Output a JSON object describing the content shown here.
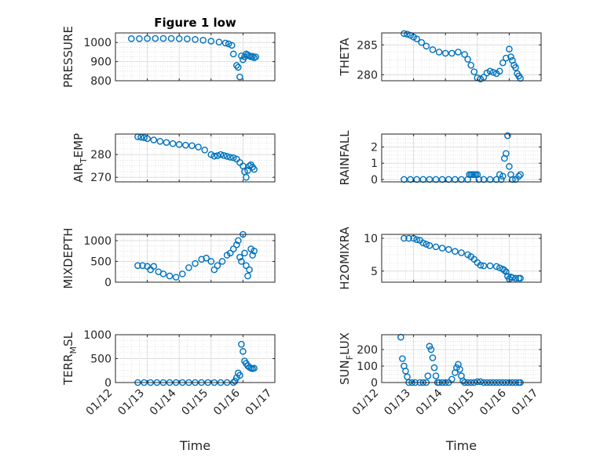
{
  "chart_data": [
    {
      "type": "scatter",
      "title": "Figure 1 low",
      "ylabel": "PRESSURE",
      "ylabel_parts": [
        {
          "t": "PRESSURE",
          "sub": false
        }
      ],
      "ylim": [
        800,
        1050
      ],
      "yticks": [
        800,
        900,
        1000
      ],
      "ytick_labels": [
        "800",
        "900",
        "1000"
      ],
      "xlim": [
        0,
        5
      ],
      "xticks": [
        0,
        1,
        2,
        3,
        4,
        5
      ],
      "xtick_labels": [],
      "grid": true,
      "marker": "circle",
      "color": "#0072bd",
      "series": [
        {
          "x": [
            0.5,
            0.75,
            1.0,
            1.25,
            1.5,
            1.75,
            2.0,
            2.25,
            2.5,
            2.75,
            3.0,
            3.25,
            3.45,
            3.55,
            3.65,
            3.7,
            3.8,
            3.85,
            3.9,
            3.95,
            4.0,
            4.05,
            4.1,
            4.15,
            4.2,
            4.25,
            4.3,
            4.35,
            4.4
          ],
          "y": [
            1020,
            1020,
            1021,
            1021,
            1021,
            1021,
            1020,
            1019,
            1016,
            1012,
            1007,
            1002,
            997,
            993,
            985,
            940,
            880,
            870,
            820,
            930,
            910,
            925,
            940,
            935,
            930,
            925,
            928,
            920,
            925
          ]
        }
      ]
    },
    {
      "type": "scatter",
      "title": "",
      "ylabel": "THETA",
      "ylabel_parts": [
        {
          "t": "THETA",
          "sub": false
        }
      ],
      "ylim": [
        279,
        287
      ],
      "yticks": [
        280,
        285
      ],
      "ytick_labels": [
        "280",
        "285"
      ],
      "xlim": [
        0,
        5
      ],
      "xticks": [
        0,
        1,
        2,
        3,
        4,
        5
      ],
      "xtick_labels": [],
      "grid": true,
      "marker": "circle",
      "color": "#0072bd",
      "series": [
        {
          "x": [
            0.7,
            0.8,
            0.9,
            1.0,
            1.1,
            1.25,
            1.4,
            1.6,
            1.8,
            2.0,
            2.2,
            2.4,
            2.6,
            2.7,
            2.8,
            2.9,
            3.0,
            3.1,
            3.2,
            3.3,
            3.4,
            3.5,
            3.6,
            3.7,
            3.8,
            3.9,
            4.0,
            4.05,
            4.1,
            4.15,
            4.2,
            4.25,
            4.3,
            4.35
          ],
          "y": [
            286.9,
            286.8,
            286.6,
            286.3,
            286.0,
            285.4,
            284.8,
            284.2,
            283.8,
            283.6,
            283.6,
            283.8,
            283.4,
            282.6,
            281.6,
            280.5,
            279.5,
            279.3,
            279.6,
            280.3,
            280.6,
            280.4,
            280.2,
            280.6,
            282.0,
            282.8,
            284.3,
            283.0,
            282.4,
            281.6,
            281.2,
            280.2,
            279.8,
            279.4
          ]
        }
      ]
    },
    {
      "type": "scatter",
      "title": "",
      "ylabel": "AIR_TEMP",
      "ylabel_parts": [
        {
          "t": "AIR",
          "sub": false
        },
        {
          "t": "T",
          "sub": true
        },
        {
          "t": "EMP",
          "sub": false
        }
      ],
      "ylim": [
        268,
        289
      ],
      "yticks": [
        270,
        280
      ],
      "ytick_labels": [
        "270",
        "280"
      ],
      "xlim": [
        0,
        5
      ],
      "xticks": [
        0,
        1,
        2,
        3,
        4,
        5
      ],
      "xtick_labels": [],
      "grid": true,
      "marker": "circle",
      "color": "#0072bd",
      "series": [
        {
          "x": [
            0.7,
            0.8,
            0.9,
            1.0,
            1.2,
            1.4,
            1.6,
            1.8,
            2.0,
            2.2,
            2.4,
            2.6,
            2.8,
            3.0,
            3.1,
            3.2,
            3.3,
            3.4,
            3.5,
            3.6,
            3.7,
            3.8,
            3.9,
            4.0,
            4.05,
            4.1,
            4.15,
            4.2,
            4.25,
            4.3,
            4.35
          ],
          "y": [
            287.8,
            287.6,
            287.4,
            287.0,
            286.4,
            285.8,
            285.3,
            284.8,
            284.4,
            284.1,
            283.9,
            283.3,
            282.0,
            280.0,
            279.3,
            279.5,
            280.0,
            279.6,
            279.2,
            278.8,
            278.6,
            278.0,
            276.5,
            275.0,
            272.5,
            270.0,
            273.0,
            275.0,
            275.5,
            274.5,
            273.5
          ]
        }
      ]
    },
    {
      "type": "scatter",
      "title": "",
      "ylabel": "RAINFALL",
      "ylabel_parts": [
        {
          "t": "RAINFALL",
          "sub": false
        }
      ],
      "ylim": [
        -0.15,
        2.8
      ],
      "yticks": [
        0,
        1,
        2
      ],
      "ytick_labels": [
        "0",
        "1",
        "2"
      ],
      "xlim": [
        0,
        5
      ],
      "xticks": [
        0,
        1,
        2,
        3,
        4,
        5
      ],
      "xtick_labels": [],
      "grid": true,
      "marker": "circle",
      "color": "#0072bd",
      "series": [
        {
          "x": [
            0.7,
            0.9,
            1.1,
            1.3,
            1.5,
            1.7,
            1.9,
            2.1,
            2.3,
            2.5,
            2.7,
            2.75,
            2.8,
            2.85,
            2.9,
            2.95,
            3.0,
            3.05,
            3.2,
            3.4,
            3.6,
            3.7,
            3.75,
            3.8,
            3.85,
            3.9,
            3.95,
            4.0,
            4.05,
            4.1,
            4.2,
            4.3,
            4.35
          ],
          "y": [
            0,
            0,
            0,
            0,
            0,
            0,
            0,
            0,
            0,
            0,
            0,
            0.3,
            0.3,
            0.3,
            0.3,
            0.3,
            0.3,
            0,
            0,
            0,
            0,
            0.3,
            0,
            0.2,
            1.3,
            1.6,
            2.7,
            0.8,
            0.3,
            0,
            0,
            0.2,
            0.3
          ]
        }
      ]
    },
    {
      "type": "scatter",
      "title": "",
      "ylabel": "MIXDEPTH",
      "ylabel_parts": [
        {
          "t": "MIXDEPTH",
          "sub": false
        }
      ],
      "ylim": [
        0,
        1150
      ],
      "yticks": [
        0,
        500,
        1000
      ],
      "ytick_labels": [
        "0",
        "500",
        "1000"
      ],
      "xlim": [
        0,
        5
      ],
      "xticks": [
        0,
        1,
        2,
        3,
        4,
        5
      ],
      "xtick_labels": [],
      "grid": true,
      "marker": "circle",
      "color": "#0072bd",
      "series": [
        {
          "x": [
            0.7,
            0.85,
            1.0,
            1.1,
            1.2,
            1.35,
            1.5,
            1.7,
            1.9,
            2.1,
            2.3,
            2.5,
            2.7,
            2.85,
            3.0,
            3.1,
            3.2,
            3.35,
            3.5,
            3.6,
            3.7,
            3.8,
            3.85,
            3.9,
            3.95,
            4.0,
            4.05,
            4.1,
            4.15,
            4.2,
            4.25,
            4.3,
            4.35
          ],
          "y": [
            400,
            400,
            380,
            300,
            380,
            250,
            200,
            150,
            120,
            200,
            350,
            450,
            550,
            580,
            500,
            300,
            400,
            500,
            650,
            700,
            800,
            900,
            1000,
            600,
            500,
            1150,
            700,
            400,
            150,
            300,
            800,
            650,
            750
          ]
        }
      ]
    },
    {
      "type": "scatter",
      "title": "",
      "ylabel": "H2OMIXRA",
      "ylabel_parts": [
        {
          "t": "H2OMIXRA",
          "sub": false
        }
      ],
      "ylim": [
        3.3,
        10.6
      ],
      "yticks": [
        5,
        10
      ],
      "ytick_labels": [
        "5",
        "10"
      ],
      "xlim": [
        0,
        5
      ],
      "xticks": [
        0,
        1,
        2,
        3,
        4,
        5
      ],
      "xtick_labels": [],
      "grid": true,
      "marker": "circle",
      "color": "#0072bd",
      "series": [
        {
          "x": [
            0.7,
            0.85,
            1.0,
            1.1,
            1.2,
            1.3,
            1.4,
            1.5,
            1.7,
            1.9,
            2.1,
            2.3,
            2.5,
            2.7,
            2.8,
            2.9,
            3.0,
            3.1,
            3.2,
            3.4,
            3.6,
            3.7,
            3.8,
            3.85,
            3.9,
            3.95,
            4.0,
            4.05,
            4.1,
            4.2,
            4.3,
            4.35
          ],
          "y": [
            10.0,
            10.0,
            10.0,
            9.8,
            9.7,
            9.3,
            9.1,
            8.9,
            8.7,
            8.5,
            8.3,
            8.0,
            7.8,
            7.5,
            7.2,
            6.8,
            6.3,
            5.9,
            5.8,
            5.8,
            5.7,
            5.5,
            5.3,
            5.1,
            4.9,
            4.2,
            3.8,
            4.1,
            4.0,
            3.9,
            3.9,
            3.9
          ]
        }
      ]
    },
    {
      "type": "scatter",
      "title": "",
      "ylabel": "TERR_MSL",
      "ylabel_parts": [
        {
          "t": "TERR",
          "sub": false
        },
        {
          "t": "M",
          "sub": true
        },
        {
          "t": "SL",
          "sub": false
        }
      ],
      "ylim": [
        0,
        1000
      ],
      "yticks": [
        0,
        500,
        1000
      ],
      "ytick_labels": [
        "0",
        "500",
        "1000"
      ],
      "xlim": [
        0,
        5
      ],
      "xticks": [
        0,
        1,
        2,
        3,
        4,
        5
      ],
      "xtick_labels": [
        "01/12",
        "01/13",
        "01/14",
        "01/15",
        "01/16",
        "01/17"
      ],
      "xlabel": "Time",
      "grid": true,
      "marker": "circle",
      "color": "#0072bd",
      "series": [
        {
          "x": [
            0.7,
            0.9,
            1.1,
            1.3,
            1.5,
            1.7,
            1.9,
            2.1,
            2.3,
            2.5,
            2.7,
            2.9,
            3.1,
            3.3,
            3.5,
            3.7,
            3.75,
            3.8,
            3.85,
            3.9,
            3.95,
            4.0,
            4.05,
            4.1,
            4.15,
            4.2,
            4.25,
            4.3,
            4.35
          ],
          "y": [
            0,
            0,
            0,
            0,
            0,
            0,
            0,
            0,
            0,
            0,
            0,
            0,
            0,
            0,
            0,
            0,
            30,
            100,
            200,
            150,
            800,
            650,
            450,
            400,
            350,
            320,
            300,
            290,
            300
          ]
        }
      ]
    },
    {
      "type": "scatter",
      "title": "",
      "ylabel": "SUN_FLUX",
      "ylabel_parts": [
        {
          "t": "SUN",
          "sub": false
        },
        {
          "t": "F",
          "sub": true
        },
        {
          "t": "LUX",
          "sub": false
        }
      ],
      "ylim": [
        0,
        290
      ],
      "yticks": [
        0,
        100,
        200
      ],
      "ytick_labels": [
        "0",
        "100",
        "200"
      ],
      "xlim": [
        0,
        5
      ],
      "xticks": [
        0,
        1,
        2,
        3,
        4,
        5
      ],
      "xtick_labels": [
        "01/12",
        "01/13",
        "01/14",
        "01/15",
        "01/16",
        "01/17"
      ],
      "xlabel": "Time",
      "grid": true,
      "marker": "circle",
      "color": "#0072bd",
      "series": [
        {
          "x": [
            0.6,
            0.65,
            0.7,
            0.75,
            0.8,
            0.85,
            0.95,
            1.05,
            1.2,
            1.3,
            1.4,
            1.45,
            1.5,
            1.55,
            1.6,
            1.65,
            1.7,
            1.75,
            1.8,
            1.9,
            2.0,
            2.1,
            2.2,
            2.3,
            2.35,
            2.4,
            2.45,
            2.5,
            2.55,
            2.6,
            2.7,
            2.8,
            2.9,
            3.0,
            3.1,
            3.2,
            3.3,
            3.4,
            3.5,
            3.6,
            3.7,
            3.8,
            3.9,
            4.0,
            4.1,
            4.2,
            4.3,
            4.35
          ],
          "y": [
            275,
            145,
            100,
            70,
            35,
            0,
            0,
            0,
            0,
            0,
            0,
            40,
            220,
            200,
            150,
            90,
            40,
            0,
            0,
            0,
            0,
            0,
            20,
            60,
            90,
            110,
            80,
            40,
            10,
            0,
            0,
            0,
            0,
            5,
            5,
            0,
            0,
            0,
            0,
            0,
            0,
            0,
            0,
            0,
            0,
            0,
            0,
            0
          ]
        }
      ]
    }
  ]
}
